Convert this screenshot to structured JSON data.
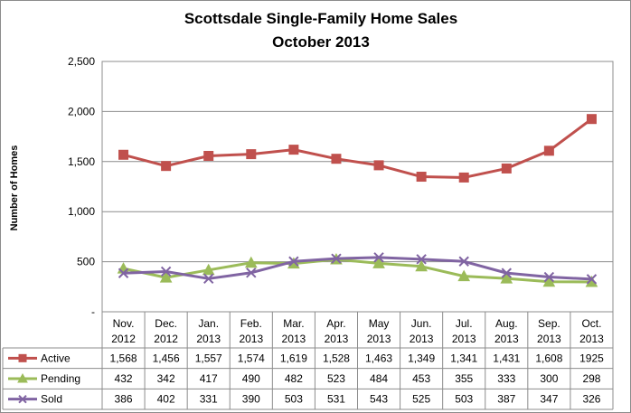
{
  "chart_data": {
    "type": "line",
    "title_line1": "Scottsdale Single-Family  Home Sales",
    "title_line2": "October 2013",
    "xlabel": "",
    "ylabel": "Number of Homes",
    "ylim": [
      0,
      2500
    ],
    "yticks": [
      0,
      500,
      1000,
      1500,
      2000,
      2500
    ],
    "ytick_labels": [
      "-",
      "500",
      "1,000",
      "1,500",
      "2,000",
      "2,500"
    ],
    "grid": true,
    "legend_placement": "data-table-left",
    "categories": [
      [
        "Nov.",
        "2012"
      ],
      [
        "Dec.",
        "2012"
      ],
      [
        "Jan.",
        "2013"
      ],
      [
        "Feb.",
        "2013"
      ],
      [
        "Mar.",
        "2013"
      ],
      [
        "Apr.",
        "2013"
      ],
      [
        "May",
        "2013"
      ],
      [
        "Jun.",
        "2013"
      ],
      [
        "Jul.",
        "2013"
      ],
      [
        "Aug.",
        "2013"
      ],
      [
        "Sep.",
        "2013"
      ],
      [
        "Oct.",
        "2013"
      ]
    ],
    "series": [
      {
        "name": "Active",
        "color": "#c0504d",
        "marker": "square",
        "values": [
          1568,
          1456,
          1557,
          1574,
          1619,
          1528,
          1463,
          1349,
          1341,
          1431,
          1608,
          1925
        ],
        "labels": [
          "1,568",
          "1,456",
          "1,557",
          "1,574",
          "1,619",
          "1,528",
          "1,463",
          "1,349",
          "1,341",
          "1,431",
          "1,608",
          "1925"
        ]
      },
      {
        "name": "Pending",
        "color": "#9bbb59",
        "marker": "triangle",
        "values": [
          432,
          342,
          417,
          490,
          482,
          523,
          484,
          453,
          355,
          333,
          300,
          298
        ],
        "labels": [
          "432",
          "342",
          "417",
          "490",
          "482",
          "523",
          "484",
          "453",
          "355",
          "333",
          "300",
          "298"
        ]
      },
      {
        "name": "Sold",
        "color": "#8064a2",
        "marker": "x",
        "values": [
          386,
          402,
          331,
          390,
          503,
          531,
          543,
          525,
          503,
          387,
          347,
          326
        ],
        "labels": [
          "386",
          "402",
          "331",
          "390",
          "503",
          "531",
          "543",
          "525",
          "503",
          "387",
          "347",
          "326"
        ]
      }
    ]
  }
}
